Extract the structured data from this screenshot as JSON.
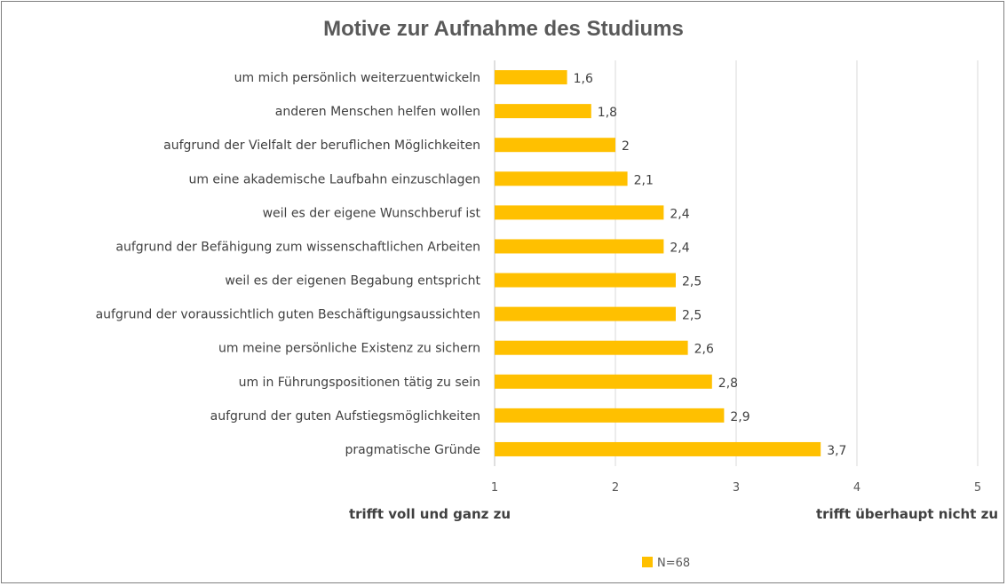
{
  "chart_data": {
    "type": "bar",
    "orientation": "horizontal",
    "title": "Motive zur Aufnahme des Studiums",
    "categories": [
      "um mich persönlich weiterzuentwickeln",
      "anderen Menschen helfen wollen",
      "aufgrund der Vielfalt der beruflichen Möglichkeiten",
      "um eine akademische Laufbahn einzuschlagen",
      "weil es der eigene Wunschberuf ist",
      "aufgrund der Befähigung zum wissenschaftlichen Arbeiten",
      "weil es der eigenen Begabung entspricht",
      "aufgrund der voraussichtlich guten Beschäftigungsaussichten",
      "um meine persönliche Existenz zu sichern",
      "um in Führungspositionen tätig zu sein",
      "aufgrund der guten Aufstiegsmöglichkeiten",
      "pragmatische Gründe"
    ],
    "series": [
      {
        "name": "N=68",
        "color": "#FFC000",
        "values": [
          1.6,
          1.8,
          2.0,
          2.1,
          2.4,
          2.4,
          2.5,
          2.5,
          2.6,
          2.8,
          2.9,
          3.7
        ],
        "labels": [
          "1,6",
          "1,8",
          "2",
          "2,1",
          "2,4",
          "2,4",
          "2,5",
          "2,5",
          "2,6",
          "2,8",
          "2,9",
          "3,7"
        ]
      }
    ],
    "xlim": [
      1,
      5
    ],
    "xticks": [
      1,
      2,
      3,
      4,
      5
    ],
    "xtick_labels": [
      "1",
      "2",
      "3",
      "4",
      "5"
    ],
    "scale_label_left": "trifft voll und ganz zu",
    "scale_label_right": "trifft überhaupt nicht zu",
    "grid": "vertical",
    "legend_position": "bottom"
  }
}
